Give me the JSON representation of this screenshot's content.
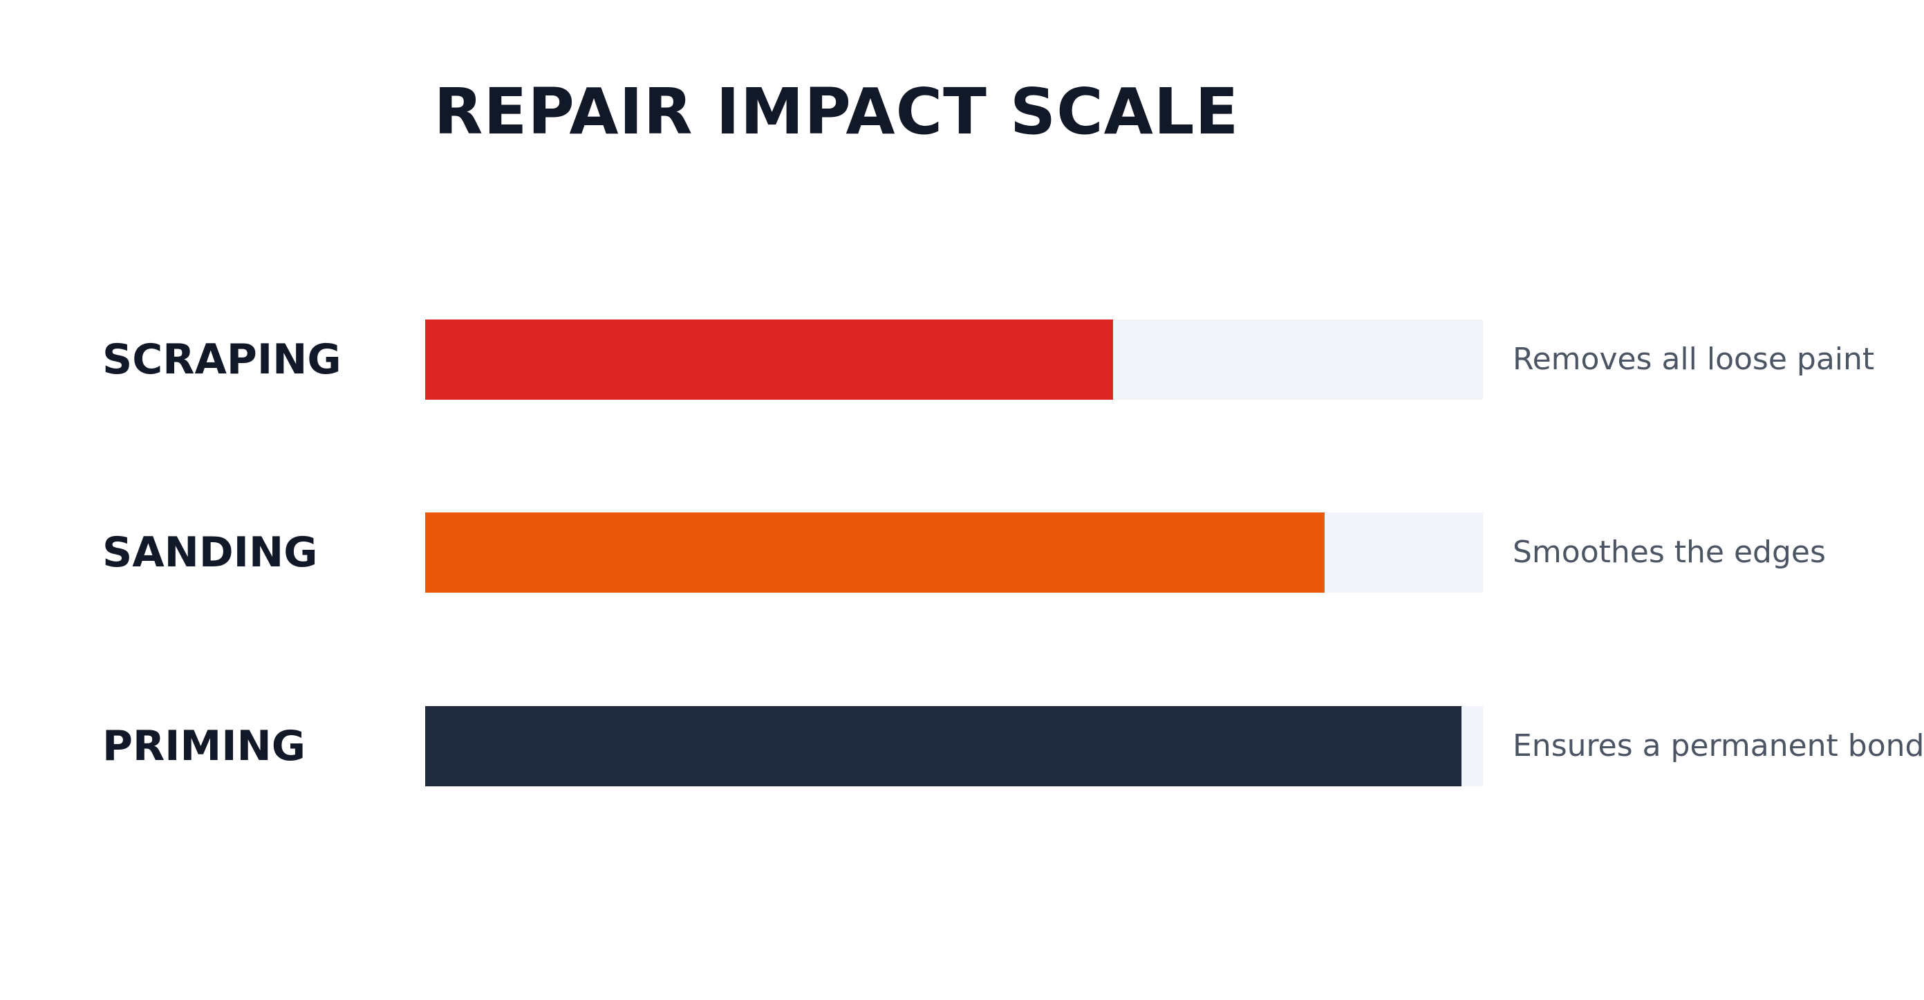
{
  "colors": {
    "title": "#111827",
    "label": "#111827",
    "description": "#4b5563",
    "track": "#f1f4f8"
  },
  "chart_data": {
    "type": "bar",
    "title": "REPAIR IMPACT SCALE",
    "orientation": "horizontal",
    "categories": [
      "SCRAPING",
      "SANDING",
      "PRIMING"
    ],
    "values": [
      65,
      85,
      98
    ],
    "ylim": [
      0,
      100
    ],
    "annotations": [
      "Removes all loose paint",
      "Smoothes the edges",
      "Ensures a permanent bond"
    ],
    "colors": [
      "#dc2626",
      "#ea580c",
      "#1f2a3d"
    ],
    "grid": false
  }
}
